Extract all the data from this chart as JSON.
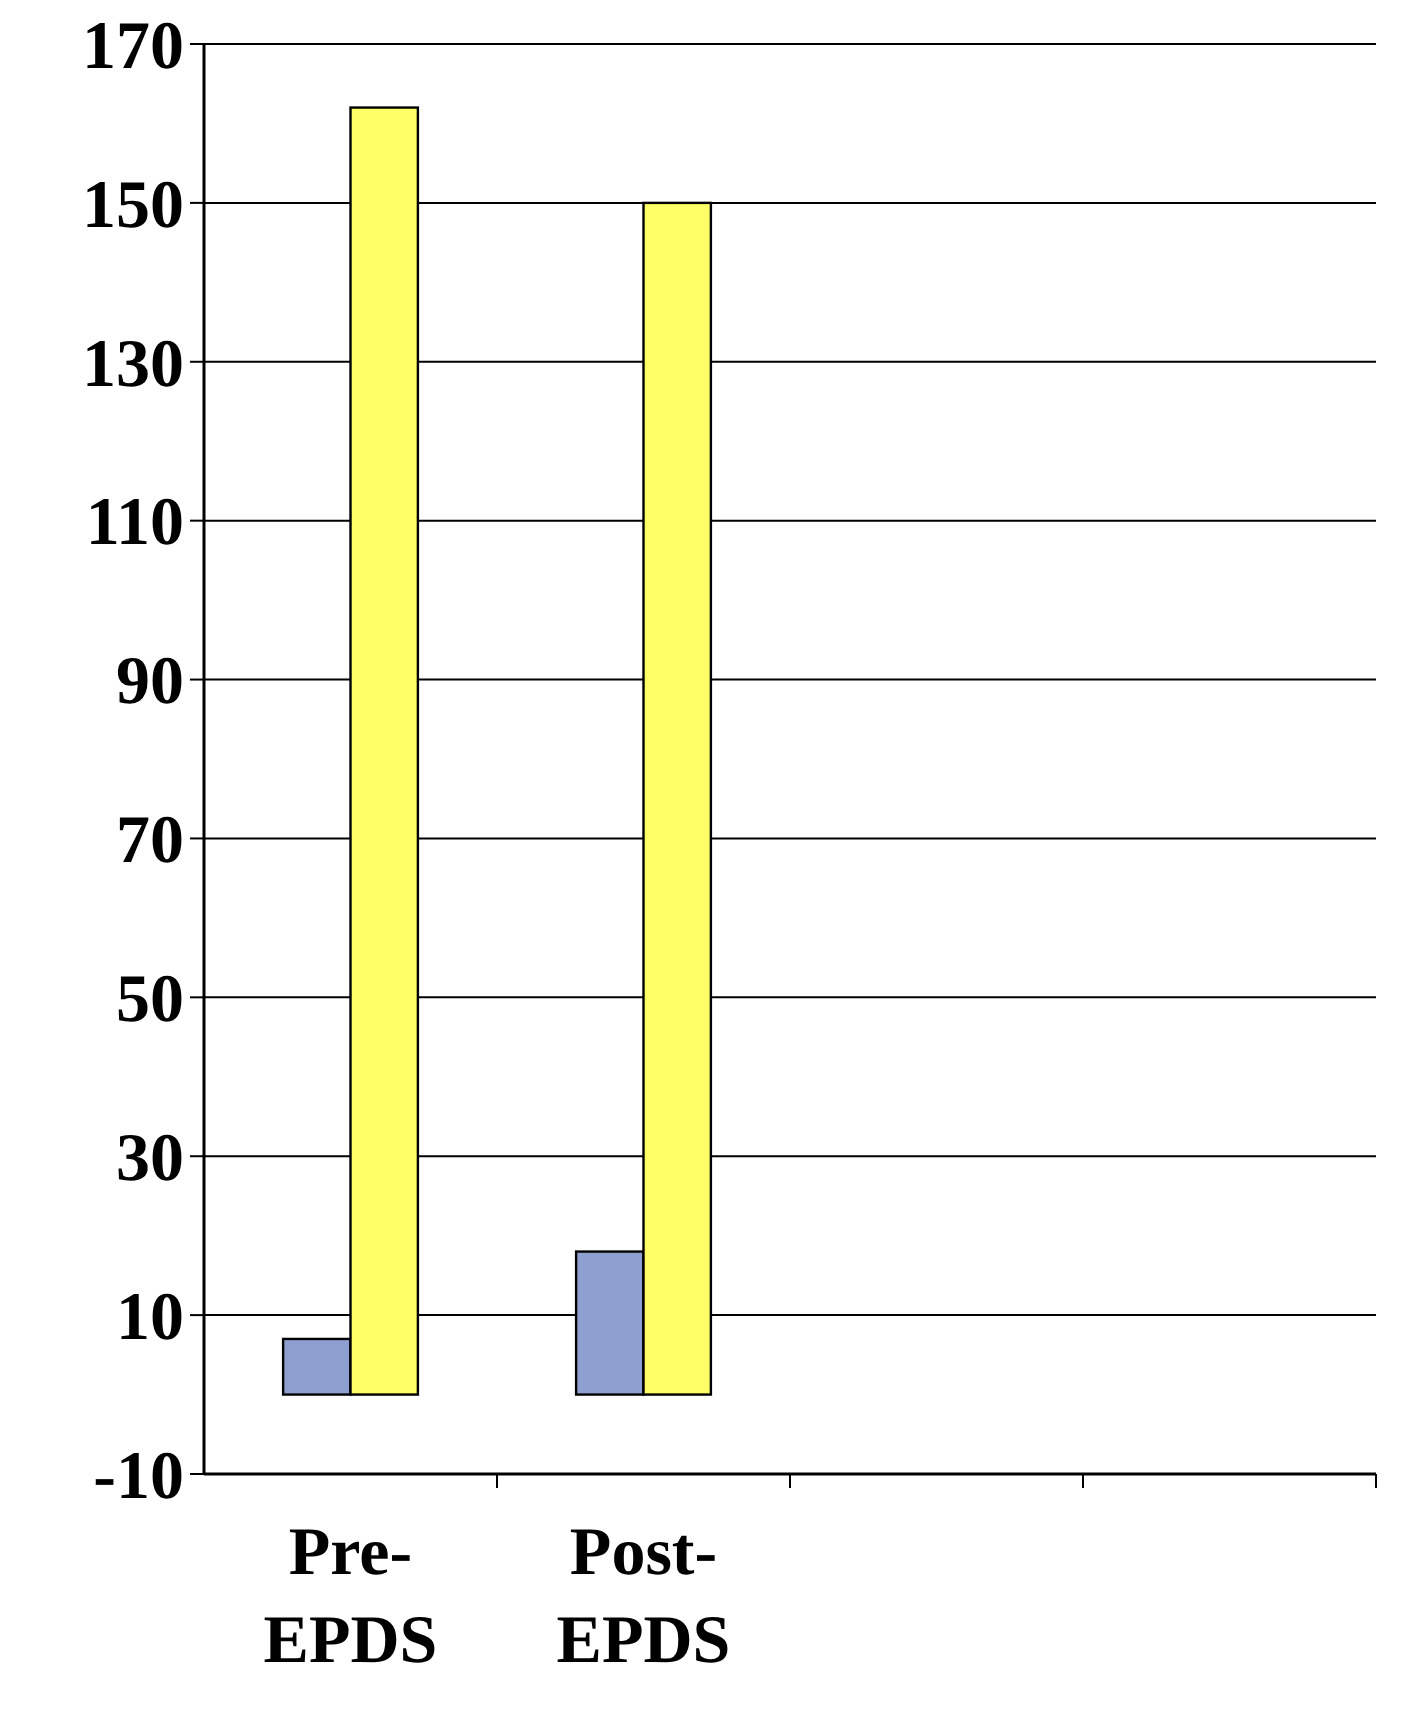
{
  "chart_data": {
    "type": "bar",
    "categories": [
      "Pre-EPDS",
      "Post-EPDS",
      null,
      null
    ],
    "series": [
      {
        "color": "#8f9fd0",
        "values": [
          7,
          18,
          null,
          null
        ]
      },
      {
        "color": "#ffff66",
        "values": [
          162,
          150,
          null,
          null
        ]
      }
    ],
    "ylim": [
      -10,
      170
    ],
    "yticks": [
      -10,
      10,
      30,
      50,
      70,
      90,
      110,
      130,
      150,
      170
    ],
    "grid": "y"
  }
}
